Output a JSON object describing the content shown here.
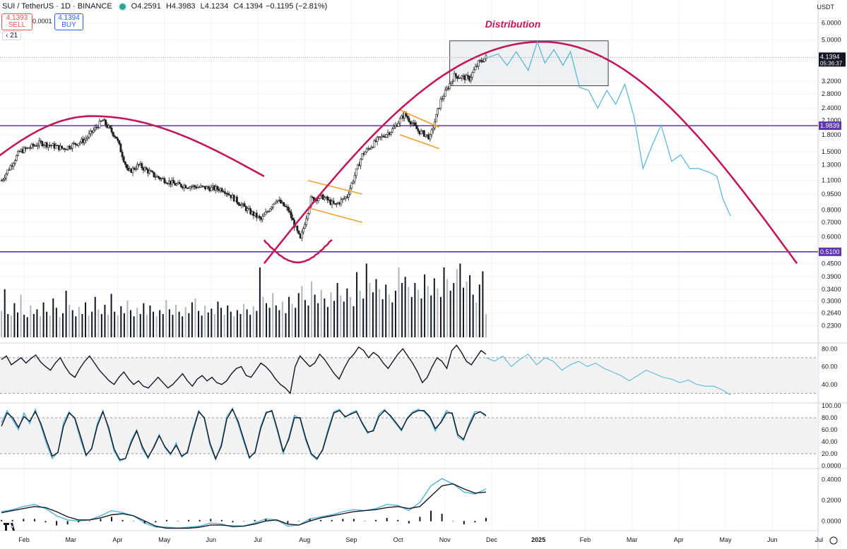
{
  "header": {
    "symbol": "SUI / TetherUS · 1D · BINANCE",
    "open_key": "O",
    "open": "4.2591",
    "high_key": "H",
    "high": "4.3983",
    "low_key": "L",
    "low": "4.1234",
    "close_key": "C",
    "close": "4.1394",
    "change": "−0.1195 (−2.81%)",
    "sell_price": "4.1393",
    "sell_label": "SELL",
    "spread": "0.0001",
    "buy_price": "4.1394",
    "buy_label": "BUY",
    "indicator": "21",
    "currency": "USDT"
  },
  "colors": {
    "up": "#26a69a",
    "down": "#ef5350",
    "arc": "#c2185b",
    "level": "#5e35b1",
    "projection": "#4fb3d9",
    "channel": "#f0a030",
    "box": "#e0e3e8",
    "candle": "#1e1e1e"
  },
  "chart_data": [
    {
      "type": "candlestick",
      "title": "SUI / TetherUS · 1D · BINANCE",
      "scale": "log",
      "annotation": "Distribution",
      "last_price": 4.1394,
      "countdown": "05:36:37",
      "price_ticks": [
        6.0,
        5.0,
        4.0,
        3.2,
        2.8,
        2.4,
        2.1,
        1.8,
        1.5,
        1.3,
        1.1,
        0.95,
        0.8,
        0.7,
        0.6,
        0.51,
        0.45,
        0.39,
        0.34,
        0.3,
        0.264,
        0.23
      ],
      "x_ticks": [
        "Feb",
        "Mar",
        "Apr",
        "May",
        "Jun",
        "Jul",
        "Aug",
        "Sep",
        "Oct",
        "Nov",
        "Dec",
        "2025",
        "Feb",
        "Mar",
        "Apr",
        "May",
        "Jun",
        "Jul"
      ],
      "horizontal_levels": [
        1.9839,
        0.51
      ],
      "level_labels": [
        "1.9839",
        "0.5100"
      ],
      "close_path_dates": [
        "2024-01-20",
        "2024-02-01",
        "2024-02-15",
        "2024-03-01",
        "2024-03-15",
        "2024-03-27",
        "2024-04-05",
        "2024-04-13",
        "2024-04-20",
        "2024-05-01",
        "2024-05-15",
        "2024-06-01",
        "2024-06-15",
        "2024-07-01",
        "2024-07-10",
        "2024-07-20",
        "2024-07-28",
        "2024-08-05",
        "2024-08-12",
        "2024-08-20",
        "2024-08-28",
        "2024-09-05",
        "2024-09-15",
        "2024-09-25",
        "2024-10-05",
        "2024-10-13",
        "2024-10-22",
        "2024-10-30",
        "2024-11-06",
        "2024-11-15",
        "2024-11-25",
        "2024-12-01",
        "2024-12-06"
      ],
      "close_path": [
        1.1,
        1.5,
        1.65,
        1.55,
        1.7,
        2.1,
        1.75,
        1.2,
        1.3,
        1.15,
        1.05,
        1.02,
        1.0,
        0.8,
        0.72,
        0.9,
        0.8,
        0.58,
        0.9,
        0.92,
        0.84,
        0.93,
        1.45,
        1.7,
        1.9,
        2.25,
        1.88,
        1.75,
        2.6,
        3.4,
        3.3,
        3.9,
        4.14
      ],
      "projection_dates": [
        "2024-12-06",
        "2024-12-14",
        "2024-12-20",
        "2024-12-26",
        "2025-01-03",
        "2025-01-09",
        "2025-01-14",
        "2025-01-20",
        "2025-01-26",
        "2025-01-31",
        "2025-02-06",
        "2025-02-12",
        "2025-02-18",
        "2025-02-24",
        "2025-03-02",
        "2025-03-08",
        "2025-03-14",
        "2025-03-20",
        "2025-03-26",
        "2025-04-01",
        "2025-04-08",
        "2025-04-14",
        "2025-04-20",
        "2025-04-26",
        "2025-05-03",
        "2025-05-08",
        "2025-05-12",
        "2025-05-17"
      ],
      "projection": [
        4.1,
        4.3,
        3.8,
        4.4,
        3.6,
        4.9,
        3.9,
        4.5,
        3.8,
        4.4,
        3.0,
        2.9,
        2.4,
        2.9,
        2.5,
        3.1,
        2.2,
        1.25,
        1.6,
        2.0,
        1.35,
        1.45,
        1.25,
        1.25,
        1.2,
        1.15,
        0.9,
        0.75
      ],
      "channels": [
        {
          "dates": [
            "2024-08-10",
            "2024-09-15"
          ],
          "upper": [
            1.1,
            0.95
          ],
          "lower": [
            0.82,
            0.7
          ]
        },
        {
          "dates": [
            "2024-10-10",
            "2024-11-05"
          ],
          "upper": [
            2.35,
            1.95
          ],
          "lower": [
            1.8,
            1.55
          ]
        }
      ],
      "distribution_zone": {
        "start": "2024-11-12",
        "end": "2025-02-25",
        "low": 3.05,
        "high": 4.95
      },
      "cycle_arcs": [
        {
          "start": "2024-01-01",
          "end": "2024-07-12",
          "peak_date": "2024-03-20",
          "peak": 2.2,
          "ends": 1.15
        },
        {
          "start": "2024-07-12",
          "end": "2025-06-30",
          "peak_date": "2025-01-12",
          "peak": 4.9,
          "ends": 0.45
        }
      ]
    },
    {
      "type": "bar",
      "title": "",
      "series": [
        {
          "values": [
            34,
            62,
            30,
            28,
            44,
            32,
            55,
            29,
            26,
            41,
            30,
            36,
            27,
            45,
            33,
            28,
            50,
            38,
            26,
            31,
            60,
            42,
            35,
            27,
            39,
            30,
            45,
            28,
            33,
            52,
            36,
            30,
            42,
            29,
            56,
            33,
            28,
            40,
            31,
            47,
            35,
            27,
            38,
            30,
            44,
            29,
            41,
            33,
            27,
            35,
            30,
            48,
            36,
            29,
            42,
            33,
            27,
            39,
            31,
            45,
            50,
            34,
            28,
            41,
            32,
            37,
            30,
            46,
            38,
            29,
            41,
            33,
            27,
            35,
            30,
            43,
            36,
            29,
            40,
            34,
            90,
            52,
            44,
            38,
            57,
            41,
            35,
            46,
            31,
            52,
            43,
            38,
            57,
            66,
            48,
            41,
            72,
            55,
            44,
            61,
            50,
            39,
            58,
            47,
            70,
            54,
            46,
            63,
            52,
            40,
            84,
            60,
            50,
            95,
            70,
            58,
            75,
            62,
            49,
            68,
            55,
            45,
            60,
            90,
            70,
            78,
            65,
            52,
            70,
            61,
            50,
            81,
            66,
            54,
            76,
            63,
            52,
            90,
            75,
            60,
            70,
            88,
            95,
            64,
            72,
            80,
            55,
            45,
            68,
            85,
            30
          ]
        }
      ],
      "ylim": [
        0,
        100
      ]
    },
    {
      "type": "line",
      "title": "",
      "ylim": [
        20,
        85
      ],
      "y_ticks": [
        80.0,
        60.0,
        40.0
      ],
      "band": [
        30,
        70
      ],
      "series": [
        {
          "values": [
            68,
            72,
            62,
            66,
            70,
            64,
            69,
            73,
            65,
            60,
            56,
            64,
            70,
            60,
            52,
            48,
            58,
            66,
            72,
            64,
            56,
            50,
            44,
            40,
            48,
            54,
            46,
            40,
            44,
            38,
            36,
            42,
            48,
            42,
            36,
            40,
            46,
            52,
            44,
            38,
            46,
            50,
            44,
            48,
            42,
            40,
            44,
            52,
            58,
            60,
            50,
            48,
            56,
            64,
            60,
            54,
            46,
            40,
            36,
            30,
            60,
            72,
            66,
            60,
            64,
            74,
            68,
            60,
            52,
            46,
            58,
            68,
            74,
            82,
            78,
            70,
            76,
            72,
            64,
            58,
            66,
            74,
            80,
            72,
            64,
            54,
            42,
            48,
            60,
            70,
            66,
            58,
            78,
            84,
            76,
            66,
            62,
            70,
            78,
            74
          ]
        },
        {
          "values": [
            70,
            66,
            72,
            60,
            68,
            74,
            62,
            70,
            66,
            56,
            62,
            66,
            60,
            64,
            58,
            54,
            50,
            44,
            50,
            56,
            52,
            48,
            46,
            42,
            45,
            40,
            38,
            38,
            34,
            28
          ],
          "label": "projection"
        }
      ]
    },
    {
      "type": "line",
      "title": "",
      "ylim": [
        0,
        100
      ],
      "y_ticks": [
        100.0,
        80.0,
        60.0,
        40.0,
        20.0,
        0.0
      ],
      "band": [
        20,
        80
      ],
      "series": [
        {
          "values": [
            72,
            92,
            76,
            60,
            88,
            70,
            94,
            66,
            36,
            12,
            22,
            72,
            90,
            78,
            44,
            16,
            30,
            70,
            92,
            60,
            24,
            8,
            12,
            42,
            60,
            28,
            12,
            32,
            52,
            30,
            18,
            38,
            14,
            24,
            62,
            92,
            78,
            34,
            10,
            36,
            82,
            96,
            70,
            40,
            12,
            24,
            66,
            90,
            90,
            56,
            20,
            48,
            84,
            78,
            42,
            18,
            10,
            28,
            62,
            90,
            94,
            80,
            88,
            92,
            70,
            54,
            60,
            86,
            94,
            82,
            70,
            58,
            80,
            90,
            94,
            90,
            80,
            58,
            74,
            92,
            86,
            48,
            42,
            70,
            90,
            90,
            82
          ]
        },
        {
          "values": [
            66,
            88,
            80,
            64,
            82,
            74,
            90,
            70,
            42,
            16,
            22,
            66,
            88,
            80,
            50,
            18,
            28,
            66,
            90,
            64,
            28,
            10,
            12,
            38,
            58,
            32,
            14,
            30,
            50,
            32,
            20,
            34,
            16,
            22,
            58,
            90,
            80,
            38,
            12,
            32,
            78,
            94,
            74,
            44,
            14,
            22,
            62,
            88,
            92,
            60,
            24,
            44,
            80,
            80,
            46,
            20,
            12,
            26,
            58,
            88,
            92,
            82,
            86,
            90,
            72,
            56,
            58,
            82,
            92,
            84,
            72,
            60,
            78,
            88,
            92,
            92,
            82,
            62,
            72,
            88,
            88,
            52,
            44,
            66,
            86,
            90,
            84
          ]
        }
      ]
    },
    {
      "type": "line",
      "title": "",
      "ylim": [
        -0.08,
        0.48
      ],
      "y_ticks": [
        0.4,
        0.2,
        0.0
      ],
      "series": [
        {
          "values": [
            0.09,
            0.11,
            0.14,
            0.16,
            0.12,
            0.05,
            0.01,
            0.0,
            0.01,
            0.05,
            0.1,
            0.08,
            0.05,
            -0.02,
            -0.06,
            -0.06,
            -0.07,
            -0.06,
            -0.05,
            -0.02,
            -0.03,
            -0.06,
            -0.05,
            -0.02,
            0.02,
            0.01,
            -0.05,
            -0.04,
            0.02,
            0.04,
            0.06,
            0.09,
            0.11,
            0.1,
            0.12,
            0.16,
            0.15,
            0.1,
            0.18,
            0.34,
            0.41,
            0.36,
            0.28,
            0.26,
            0.31
          ]
        },
        {
          "values": [
            0.08,
            0.1,
            0.12,
            0.14,
            0.13,
            0.09,
            0.04,
            0.01,
            0.01,
            0.03,
            0.06,
            0.07,
            0.05,
            0.0,
            -0.05,
            -0.07,
            -0.07,
            -0.07,
            -0.06,
            -0.04,
            -0.04,
            -0.05,
            -0.05,
            -0.03,
            0.0,
            0.01,
            -0.03,
            -0.04,
            0.0,
            0.03,
            0.05,
            0.07,
            0.09,
            0.1,
            0.11,
            0.13,
            0.14,
            0.12,
            0.14,
            0.24,
            0.34,
            0.36,
            0.31,
            0.27,
            0.28
          ]
        }
      ]
    }
  ]
}
